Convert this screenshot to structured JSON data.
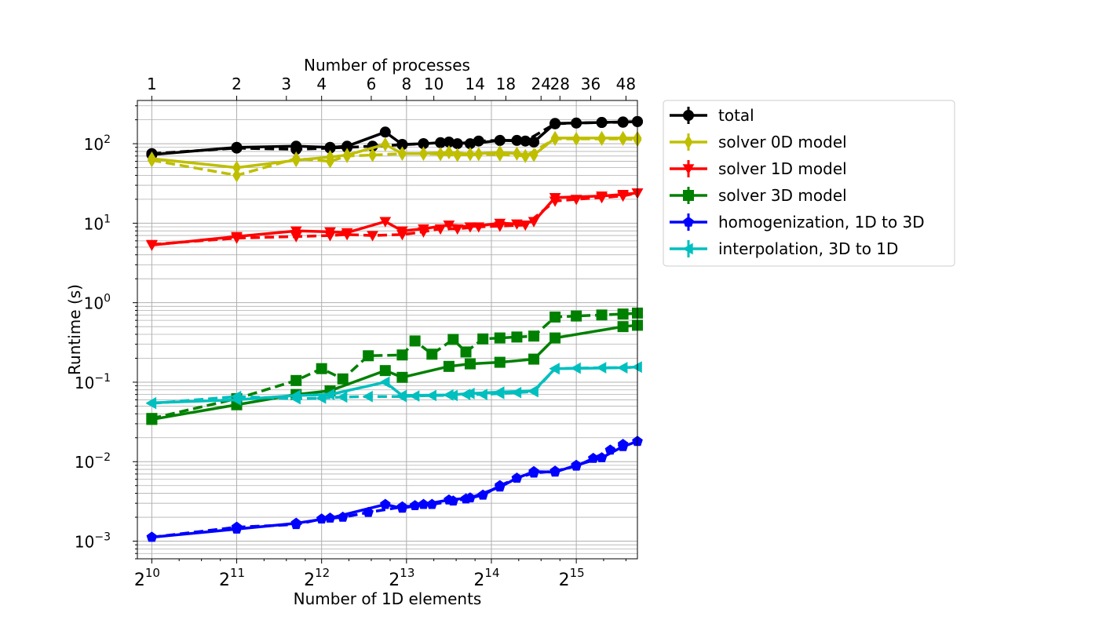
{
  "chart_data": {
    "type": "line",
    "title": "",
    "xlabel": "Number of 1D elements",
    "ylabel": "Runtime (s)",
    "top_xlabel": "Number of processes",
    "xscale": "log2",
    "yscale": "log10",
    "xlim_log2": [
      9.83,
      15.72
    ],
    "ylim": [
      0.0006,
      350
    ],
    "grid": true,
    "legend_position": "outside-right",
    "x_ticks": [
      {
        "label": "2",
        "exp": "10",
        "log2": 10
      },
      {
        "label": "2",
        "exp": "11",
        "log2": 11
      },
      {
        "label": "2",
        "exp": "12",
        "log2": 12
      },
      {
        "label": "2",
        "exp": "13",
        "log2": 13
      },
      {
        "label": "2",
        "exp": "14",
        "log2": 14
      },
      {
        "label": "2",
        "exp": "15",
        "log2": 15
      }
    ],
    "y_ticks": [
      {
        "label": "10",
        "exp": "−3",
        "value": 0.001
      },
      {
        "label": "10",
        "exp": "−2",
        "value": 0.01
      },
      {
        "label": "10",
        "exp": "−1",
        "value": 0.1
      },
      {
        "label": "10",
        "exp": "0",
        "value": 1
      },
      {
        "label": "10",
        "exp": "1",
        "value": 10
      },
      {
        "label": "10",
        "exp": "2",
        "value": 100
      }
    ],
    "top_ticks": [
      {
        "label": "1",
        "processes": 1
      },
      {
        "label": "2",
        "processes": 2
      },
      {
        "label": "3",
        "processes": 3
      },
      {
        "label": "4",
        "processes": 4
      },
      {
        "label": "6",
        "processes": 6
      },
      {
        "label": "8",
        "processes": 8
      },
      {
        "label": "10",
        "processes": 10
      },
      {
        "label": "14",
        "processes": 14
      },
      {
        "label": "18",
        "processes": 18
      },
      {
        "label": "24",
        "processes": 24
      },
      {
        "label": "28",
        "processes": 28
      },
      {
        "label": "36",
        "processes": 36
      },
      {
        "label": "48",
        "processes": 48
      }
    ],
    "series": [
      {
        "name": "total",
        "color": "#000000",
        "marker": "circle",
        "solid_x": [
          10,
          11,
          11.7,
          12.1,
          12.3,
          12.75,
          12.95,
          13.2,
          13.5,
          13.75,
          14.1,
          14.3,
          14.5,
          14.75,
          15.3,
          15.55,
          15.72
        ],
        "solid_y": [
          73,
          90,
          93,
          90,
          93,
          140,
          98,
          100,
          105,
          100,
          110,
          110,
          105,
          180,
          185,
          188,
          190
        ],
        "dashed_x": [
          10,
          11,
          11.7,
          12.1,
          12.3,
          12.6,
          12.95,
          13.2,
          13.4,
          13.6,
          13.85,
          14.1,
          14.4,
          14.75,
          15.0,
          15.3,
          15.55,
          15.72
        ],
        "dashed_y": [
          75,
          88,
          85,
          88,
          90,
          93,
          97,
          100,
          103,
          100,
          108,
          110,
          108,
          178,
          182,
          185,
          186,
          190
        ]
      },
      {
        "name": "solver 0D model",
        "color": "#bfbf00",
        "marker": "thin_diamond",
        "solid_x": [
          10,
          11,
          11.7,
          12.1,
          12.3,
          12.75,
          12.95,
          13.2,
          13.5,
          13.75,
          14.1,
          14.3,
          14.5,
          14.75,
          15.3,
          15.55,
          15.72
        ],
        "solid_y": [
          65,
          50,
          62,
          68,
          72,
          98,
          75,
          75,
          78,
          74,
          78,
          75,
          72,
          118,
          118,
          118,
          118
        ],
        "dashed_x": [
          10,
          11,
          11.7,
          12.1,
          12.3,
          12.6,
          12.95,
          13.2,
          13.4,
          13.6,
          13.85,
          14.1,
          14.4,
          14.75,
          15.0,
          15.3,
          15.55,
          15.72
        ],
        "dashed_y": [
          62,
          40,
          65,
          60,
          70,
          72,
          75,
          75,
          74,
          72,
          74,
          73,
          70,
          115,
          115,
          115,
          115,
          112
        ]
      },
      {
        "name": "solver 1D model",
        "color": "#ff0000",
        "marker": "triangle_down",
        "solid_x": [
          10,
          11,
          11.7,
          12.1,
          12.3,
          12.75,
          12.95,
          13.2,
          13.5,
          13.75,
          14.1,
          14.3,
          14.5,
          14.75,
          15.3,
          15.55,
          15.72
        ],
        "solid_y": [
          5.3,
          6.8,
          8.0,
          7.8,
          7.6,
          10.5,
          8.0,
          8.5,
          9.5,
          9.0,
          10.0,
          9.8,
          10.5,
          21,
          22,
          23,
          24
        ],
        "dashed_x": [
          10,
          11,
          11.7,
          12.1,
          12.3,
          12.6,
          12.95,
          13.2,
          13.4,
          13.6,
          13.85,
          14.1,
          14.4,
          14.75,
          15.0,
          15.3,
          15.55,
          15.72
        ],
        "dashed_y": [
          5.4,
          6.5,
          6.8,
          7.0,
          7.2,
          7.0,
          7.2,
          7.8,
          8.5,
          8.5,
          9.0,
          9.2,
          9.5,
          19,
          20,
          21,
          22,
          24
        ]
      },
      {
        "name": "solver 3D model",
        "color": "#008000",
        "marker": "square",
        "solid_x": [
          10,
          11,
          11.7,
          12.1,
          12.75,
          12.95,
          13.5,
          13.75,
          14.1,
          14.5,
          14.75,
          15.55,
          15.72
        ],
        "solid_y": [
          0.034,
          0.052,
          0.07,
          0.078,
          0.14,
          0.115,
          0.158,
          0.17,
          0.178,
          0.195,
          0.36,
          0.5,
          0.52
        ],
        "dashed_x": [
          10,
          11,
          11.7,
          12.0,
          12.25,
          12.55,
          12.95,
          13.1,
          13.3,
          13.55,
          13.7,
          13.9,
          14.1,
          14.3,
          14.5,
          14.75,
          15.0,
          15.3,
          15.55,
          15.72
        ],
        "dashed_y": [
          0.035,
          0.062,
          0.105,
          0.148,
          0.11,
          0.215,
          0.22,
          0.33,
          0.225,
          0.345,
          0.24,
          0.35,
          0.36,
          0.37,
          0.38,
          0.66,
          0.68,
          0.7,
          0.72,
          0.74
        ]
      },
      {
        "name": "homogenization, 1D to 3D",
        "color": "#0000ff",
        "marker": "pentagon",
        "solid_x": [
          10,
          11,
          11.7,
          12.1,
          12.75,
          12.95,
          13.2,
          13.5,
          13.75,
          14.1,
          14.3,
          14.5,
          14.75,
          15.0,
          15.3,
          15.55,
          15.72
        ],
        "solid_y": [
          0.00112,
          0.00142,
          0.00168,
          0.00195,
          0.0029,
          0.0026,
          0.0029,
          0.0033,
          0.0035,
          0.0048,
          0.0062,
          0.0075,
          0.0074,
          0.009,
          0.0112,
          0.0155,
          0.018
        ],
        "dashed_x": [
          10,
          11,
          11.7,
          12.0,
          12.25,
          12.55,
          12.95,
          13.1,
          13.3,
          13.55,
          13.7,
          13.9,
          14.1,
          14.3,
          14.5,
          14.75,
          15.0,
          15.2,
          15.4,
          15.55,
          15.72
        ],
        "dashed_y": [
          0.00112,
          0.0015,
          0.00162,
          0.0019,
          0.002,
          0.0023,
          0.0027,
          0.0028,
          0.0029,
          0.0032,
          0.0034,
          0.0038,
          0.005,
          0.0062,
          0.0072,
          0.0076,
          0.0088,
          0.011,
          0.014,
          0.0165,
          0.018
        ]
      },
      {
        "name": "interpolation, 3D to 1D",
        "color": "#00bfbf",
        "marker": "triangle_left",
        "solid_x": [
          10,
          11,
          11.7,
          12.1,
          12.75,
          12.95,
          13.5,
          13.75,
          14.1,
          14.5,
          14.75,
          15.55,
          15.72
        ],
        "solid_y": [
          0.055,
          0.06,
          0.068,
          0.07,
          0.1,
          0.068,
          0.069,
          0.072,
          0.075,
          0.078,
          0.148,
          0.152,
          0.155
        ],
        "dashed_x": [
          10,
          11,
          11.7,
          12.0,
          12.25,
          12.55,
          12.95,
          13.1,
          13.3,
          13.55,
          13.7,
          13.9,
          14.1,
          14.3,
          14.5,
          14.75,
          15.0,
          15.3,
          15.55,
          15.72
        ],
        "dashed_y": [
          0.054,
          0.066,
          0.062,
          0.063,
          0.065,
          0.066,
          0.066,
          0.067,
          0.068,
          0.068,
          0.07,
          0.07,
          0.072,
          0.074,
          0.076,
          0.148,
          0.15,
          0.152,
          0.152,
          0.155
        ]
      }
    ]
  }
}
